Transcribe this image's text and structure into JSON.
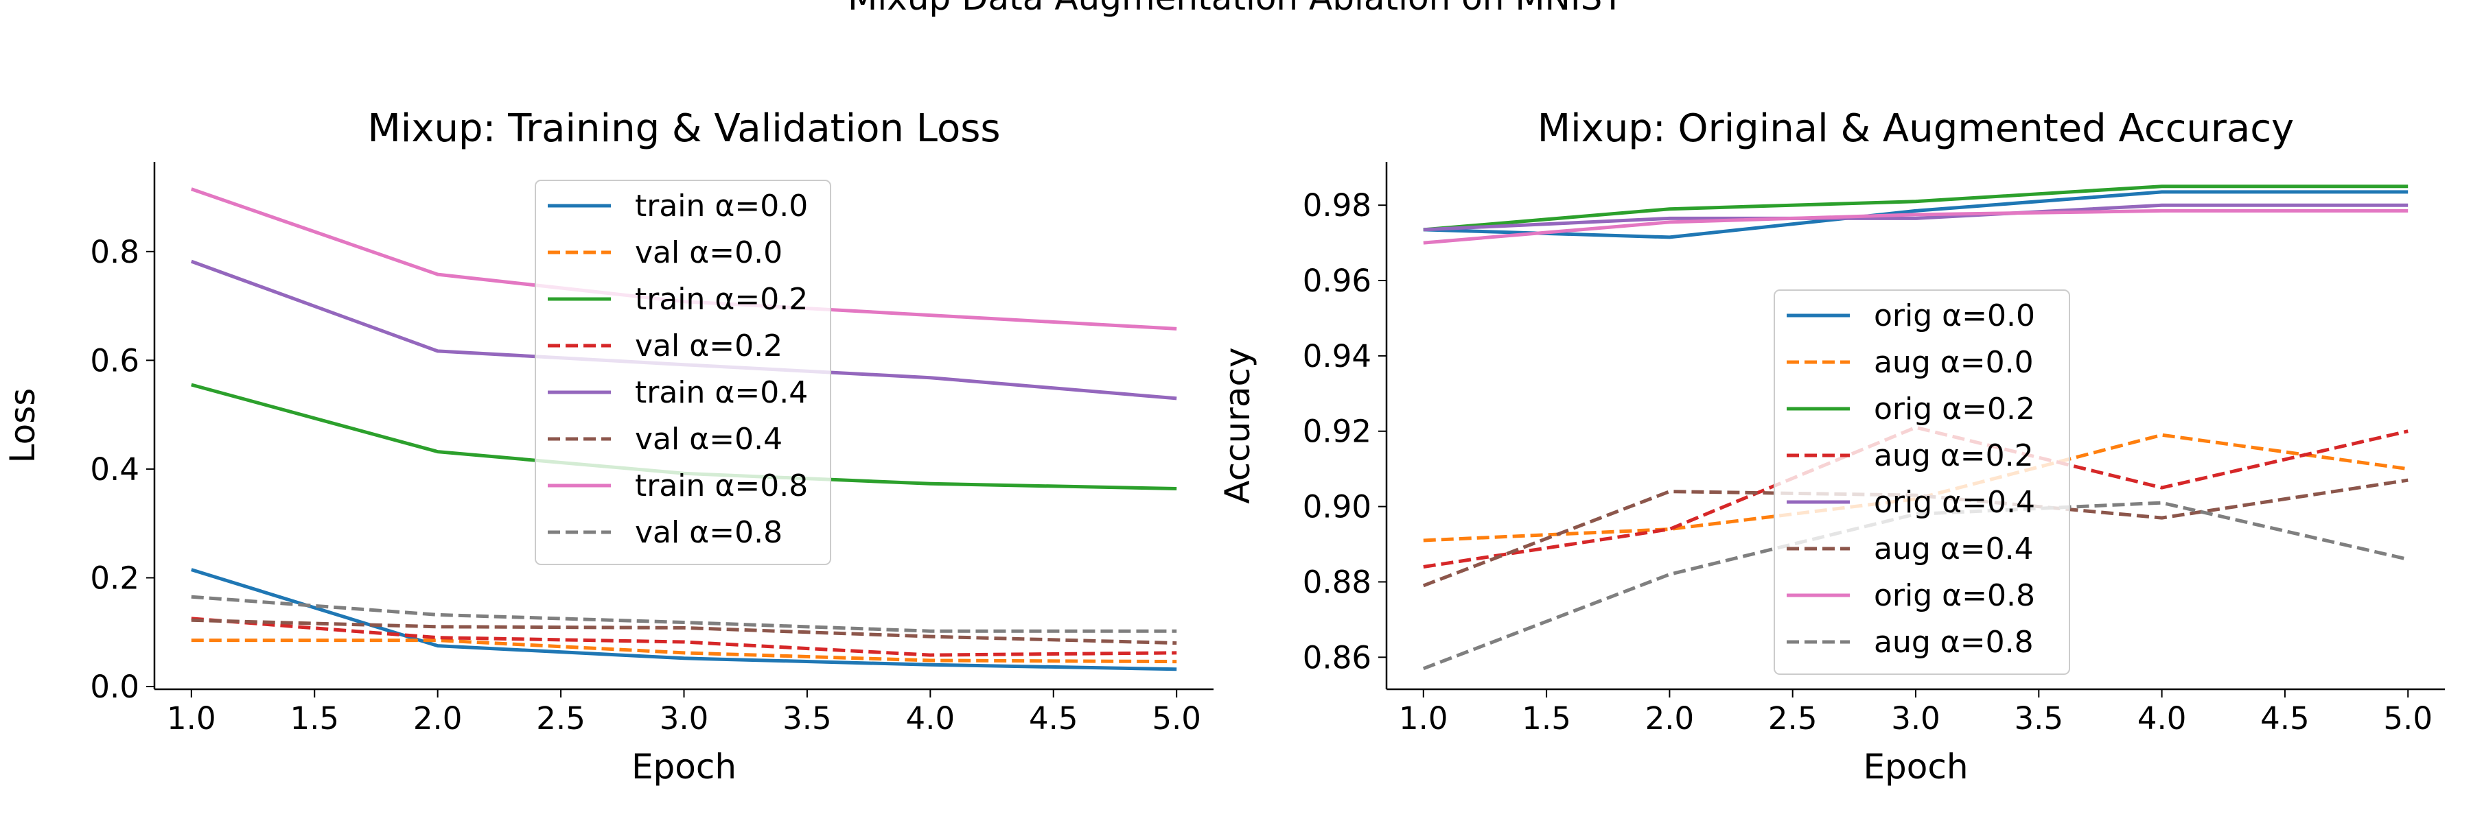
{
  "figure": {
    "suptitle": "Mixup Data Augmentation Ablation on MNIST"
  },
  "chart_data": [
    {
      "type": "line",
      "title": "Mixup: Training & Validation Loss",
      "xlabel": "Epoch",
      "ylabel": "Loss",
      "xlim": [
        0.85,
        5.15
      ],
      "ylim": [
        -0.005,
        0.965
      ],
      "xticks": [
        1.0,
        1.5,
        2.0,
        2.5,
        3.0,
        3.5,
        4.0,
        4.5,
        5.0
      ],
      "xtick_labels": [
        "1.0",
        "1.5",
        "2.0",
        "2.5",
        "3.0",
        "3.5",
        "4.0",
        "4.5",
        "5.0"
      ],
      "yticks": [
        0.0,
        0.2,
        0.4,
        0.6,
        0.8
      ],
      "ytick_labels": [
        "0.0",
        "0.2",
        "0.4",
        "0.6",
        "0.8"
      ],
      "grid": false,
      "legend_position": "upper-center",
      "x": [
        1,
        2,
        3,
        4,
        5
      ],
      "series": [
        {
          "name": "train α=0.0",
          "color": "#1f77b4",
          "style": "solid",
          "values": [
            0.215,
            0.075,
            0.052,
            0.04,
            0.032
          ]
        },
        {
          "name": "val α=0.0",
          "color": "#ff7f0e",
          "style": "dashed",
          "values": [
            0.085,
            0.085,
            0.062,
            0.048,
            0.046
          ]
        },
        {
          "name": "train α=0.2",
          "color": "#2ca02c",
          "style": "solid",
          "values": [
            0.555,
            0.432,
            0.392,
            0.373,
            0.364
          ]
        },
        {
          "name": "val α=0.2",
          "color": "#d62728",
          "style": "dashed",
          "values": [
            0.125,
            0.09,
            0.082,
            0.058,
            0.062
          ]
        },
        {
          "name": "train α=0.4",
          "color": "#9467bd",
          "style": "solid",
          "values": [
            0.782,
            0.617,
            0.592,
            0.568,
            0.53
          ]
        },
        {
          "name": "val α=0.4",
          "color": "#8c564b",
          "style": "dashed",
          "values": [
            0.122,
            0.11,
            0.108,
            0.092,
            0.08
          ]
        },
        {
          "name": "train α=0.8",
          "color": "#e377c2",
          "style": "solid",
          "values": [
            0.915,
            0.758,
            0.708,
            0.683,
            0.658
          ]
        },
        {
          "name": "val α=0.8",
          "color": "#7f7f7f",
          "style": "dashed",
          "values": [
            0.165,
            0.132,
            0.118,
            0.102,
            0.102
          ]
        }
      ]
    },
    {
      "type": "line",
      "title": "Mixup: Original & Augmented Accuracy",
      "xlabel": "Epoch",
      "ylabel": "Accuracy",
      "xlim": [
        0.85,
        5.15
      ],
      "ylim": [
        0.8515,
        0.9915
      ],
      "xticks": [
        1.0,
        1.5,
        2.0,
        2.5,
        3.0,
        3.5,
        4.0,
        4.5,
        5.0
      ],
      "xtick_labels": [
        "1.0",
        "1.5",
        "2.0",
        "2.5",
        "3.0",
        "3.5",
        "4.0",
        "4.5",
        "5.0"
      ],
      "yticks": [
        0.86,
        0.88,
        0.9,
        0.92,
        0.94,
        0.96,
        0.98
      ],
      "ytick_labels": [
        "0.86",
        "0.88",
        "0.90",
        "0.92",
        "0.94",
        "0.96",
        "0.98"
      ],
      "grid": false,
      "legend_position": "center",
      "x": [
        1,
        2,
        3,
        4,
        5
      ],
      "series": [
        {
          "name": "orig α=0.0",
          "color": "#1f77b4",
          "style": "solid",
          "values": [
            0.9735,
            0.9715,
            0.9785,
            0.9835,
            0.9835
          ]
        },
        {
          "name": "aug α=0.0",
          "color": "#ff7f0e",
          "style": "dashed",
          "values": [
            0.891,
            0.894,
            0.902,
            0.919,
            0.91
          ]
        },
        {
          "name": "orig α=0.2",
          "color": "#2ca02c",
          "style": "solid",
          "values": [
            0.9735,
            0.979,
            0.981,
            0.985,
            0.985
          ]
        },
        {
          "name": "aug α=0.2",
          "color": "#d62728",
          "style": "dashed",
          "values": [
            0.884,
            0.894,
            0.921,
            0.905,
            0.92
          ]
        },
        {
          "name": "orig α=0.4",
          "color": "#9467bd",
          "style": "solid",
          "values": [
            0.9735,
            0.9765,
            0.9765,
            0.98,
            0.98
          ]
        },
        {
          "name": "aug α=0.4",
          "color": "#8c564b",
          "style": "dashed",
          "values": [
            0.879,
            0.904,
            0.903,
            0.897,
            0.907
          ]
        },
        {
          "name": "orig α=0.8",
          "color": "#e377c2",
          "style": "solid",
          "values": [
            0.97,
            0.9755,
            0.9775,
            0.9785,
            0.9785
          ]
        },
        {
          "name": "aug α=0.8",
          "color": "#7f7f7f",
          "style": "dashed",
          "values": [
            0.857,
            0.882,
            0.898,
            0.901,
            0.886
          ]
        }
      ]
    }
  ]
}
